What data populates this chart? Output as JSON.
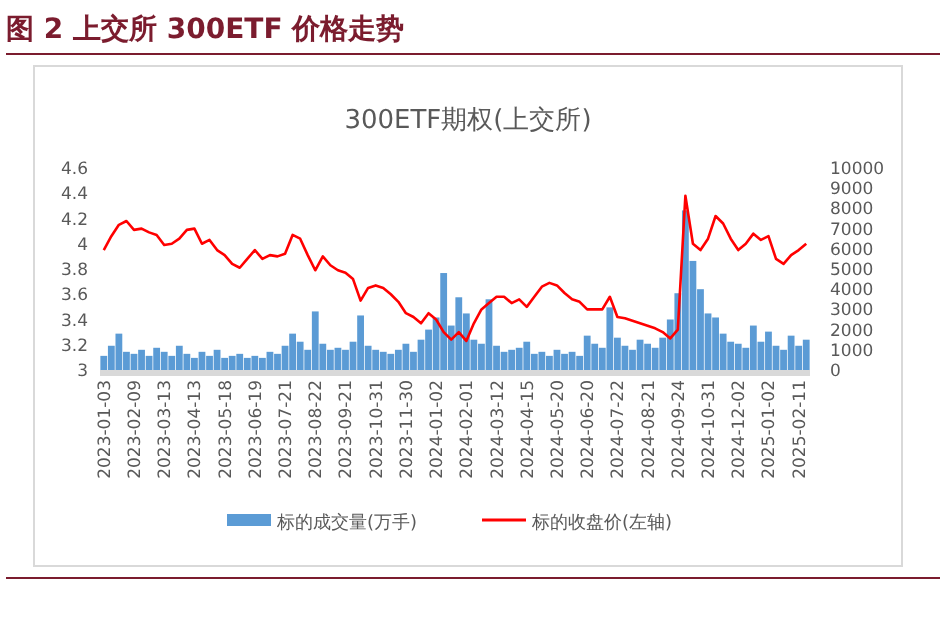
{
  "chart_data": {
    "type": "bar",
    "title": "图 2 上交所 300ETF 价格走势",
    "subtitle": "300ETF期权(上交所)",
    "categories": [
      "2023-01-03",
      null,
      null,
      null,
      "2023-02-09",
      null,
      null,
      null,
      "2023-03-13",
      null,
      null,
      null,
      "2023-04-13",
      null,
      null,
      null,
      "2023-05-18",
      null,
      null,
      null,
      "2023-06-19",
      null,
      null,
      null,
      "2023-07-21",
      null,
      null,
      null,
      "2023-08-22",
      null,
      null,
      null,
      "2023-09-21",
      null,
      null,
      null,
      "2023-10-31",
      null,
      null,
      null,
      "2023-11-30",
      null,
      null,
      null,
      "2024-01-02",
      null,
      null,
      null,
      "2024-02-01",
      null,
      null,
      null,
      "2024-03-12",
      null,
      null,
      null,
      "2024-04-15",
      null,
      null,
      null,
      "2024-05-20",
      null,
      null,
      null,
      "2024-06-20",
      null,
      null,
      null,
      "2024-07-22",
      null,
      null,
      null,
      "2024-08-21",
      null,
      null,
      null,
      "2024-09-24",
      null,
      null,
      null,
      "2024-10-31",
      null,
      null,
      null,
      "2024-12-02",
      null,
      null,
      null,
      "2025-01-02",
      null,
      null,
      null,
      "2025-02-11",
      null
    ],
    "series": [
      {
        "name": "标的成交量(万手)",
        "axis": "y2",
        "color": "#5b9bd5",
        "values": [
          700,
          1200,
          1800,
          900,
          800,
          1000,
          700,
          1100,
          900,
          700,
          1200,
          800,
          600,
          900,
          700,
          1000,
          600,
          700,
          800,
          600,
          700,
          600,
          900,
          800,
          1200,
          1800,
          1400,
          1000,
          2900,
          1300,
          1000,
          1100,
          1000,
          1400,
          2700,
          1200,
          1000,
          900,
          800,
          1000,
          1300,
          900,
          1500,
          2000,
          2600,
          4800,
          2200,
          3600,
          2800,
          1500,
          1300,
          3500,
          1200,
          900,
          1000,
          1100,
          1400,
          800,
          900,
          700,
          1000,
          800,
          900,
          700,
          1700,
          1300,
          1100,
          3100,
          1600,
          1200,
          1000,
          1500,
          1300,
          1100,
          1600,
          2500,
          3800,
          7900,
          5400,
          4000,
          2800,
          2600,
          1800,
          1400,
          1300,
          1100,
          2200,
          1400,
          1900,
          1200,
          1000,
          1700,
          1200,
          1500
        ]
      },
      {
        "name": "标的收盘价(左轴)",
        "type": "line",
        "color": "#ff0000",
        "values": [
          3.95,
          4.06,
          4.15,
          4.18,
          4.11,
          4.12,
          4.09,
          4.07,
          3.99,
          4.0,
          4.04,
          4.11,
          4.12,
          4.0,
          4.03,
          3.95,
          3.91,
          3.84,
          3.81,
          3.88,
          3.95,
          3.88,
          3.91,
          3.9,
          3.92,
          4.07,
          4.04,
          3.91,
          3.79,
          3.9,
          3.83,
          3.79,
          3.77,
          3.72,
          3.55,
          3.65,
          3.67,
          3.65,
          3.6,
          3.54,
          3.45,
          3.42,
          3.37,
          3.45,
          3.4,
          3.3,
          3.24,
          3.3,
          3.23,
          3.37,
          3.48,
          3.53,
          3.58,
          3.58,
          3.53,
          3.56,
          3.5,
          3.58,
          3.66,
          3.69,
          3.67,
          3.61,
          3.56,
          3.54,
          3.48,
          3.48,
          3.48,
          3.58,
          3.42,
          3.41,
          3.39,
          3.37,
          3.35,
          3.33,
          3.3,
          3.25,
          3.32,
          4.38,
          4.0,
          3.95,
          4.04,
          4.22,
          4.16,
          4.04,
          3.95,
          4.0,
          4.08,
          4.03,
          4.06,
          3.88,
          3.84,
          3.91,
          3.95,
          4.0
        ]
      }
    ],
    "ylim": [
      3,
      4.6
    ],
    "yticks": [
      3,
      3.2,
      3.4,
      3.6,
      3.8,
      4,
      4.2,
      4.4,
      4.6
    ],
    "y2lim": [
      0,
      10000
    ],
    "y2ticks": [
      0,
      1000,
      2000,
      3000,
      4000,
      5000,
      6000,
      7000,
      8000,
      9000,
      10000
    ],
    "legend": "bottom"
  }
}
